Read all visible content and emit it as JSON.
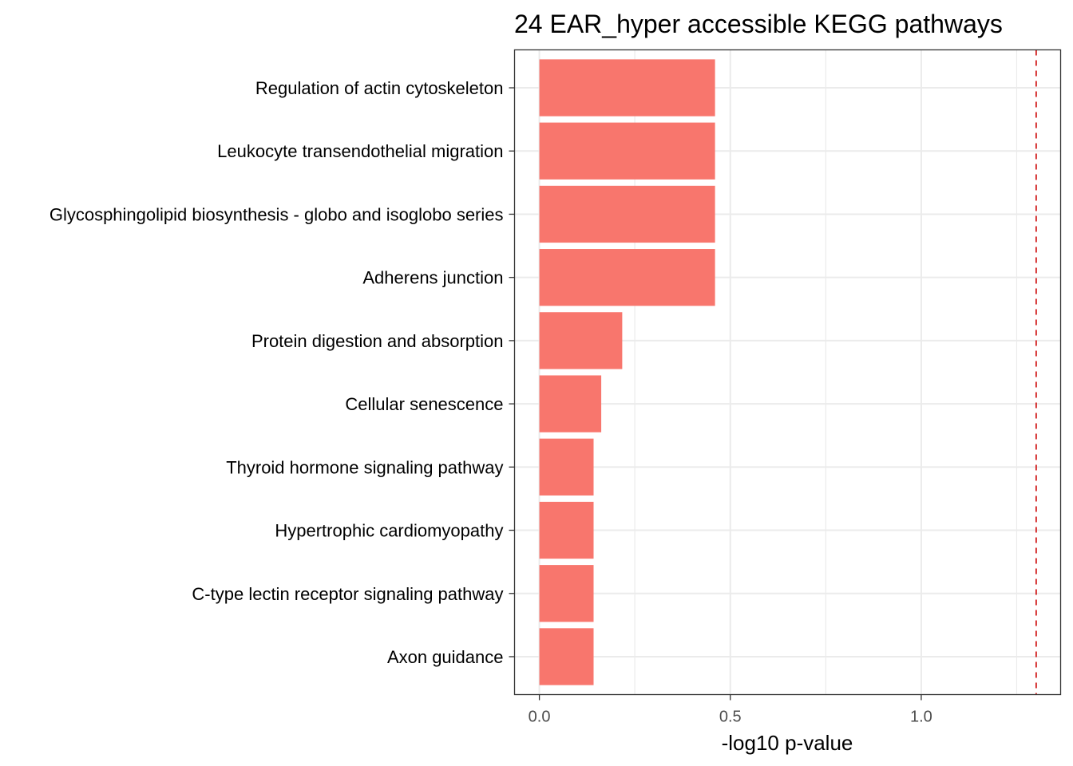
{
  "chart_data": {
    "type": "bar",
    "orientation": "horizontal",
    "title": "24 EAR_hyper accessible KEGG pathways",
    "xlabel": "-log10 p-value",
    "ylabel": "",
    "xlim": [
      -0.065,
      1.365
    ],
    "x_ticks": [
      0.0,
      0.5,
      1.0
    ],
    "x_tick_labels": [
      "0.0",
      "0.5",
      "1.0"
    ],
    "categories": [
      "Regulation of actin cytoskeleton",
      "Leukocyte transendothelial migration",
      "Glycosphingolipid biosynthesis - globo and isoglobo series",
      "Adherens junction",
      "Protein digestion and absorption",
      "Cellular senescence",
      "Thyroid hormone signaling pathway",
      "Hypertrophic cardiomyopathy",
      "C-type lectin receptor signaling pathway",
      "Axon guidance"
    ],
    "values": [
      0.46,
      0.46,
      0.46,
      0.46,
      0.217,
      0.162,
      0.142,
      0.142,
      0.142,
      0.142
    ],
    "reference_line": {
      "value": 1.301,
      "style": "dashed",
      "color": "#cc0000"
    },
    "bar_color": "#f8766d",
    "grid": true,
    "legend": "none"
  }
}
